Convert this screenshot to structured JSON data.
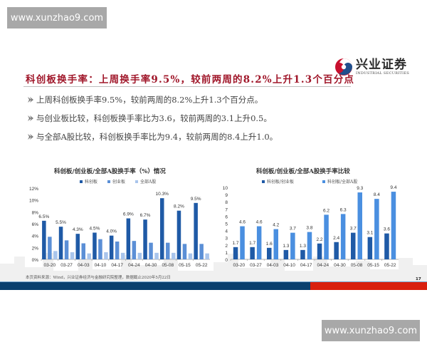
{
  "watermark": {
    "top_text": "www.xunzhao9.com",
    "bottom_text": "www.xunzhao9.com"
  },
  "logo": {
    "name_cn": "兴业证券",
    "name_en": "INDUSTRIAL SECURITIES",
    "colors": {
      "red": "#c8102e",
      "blue": "#1f4e8c"
    }
  },
  "headline": "科创板换手率：上周换手率9.5%，较前两周的8.2%上升1.3个百分点",
  "bullets": [
    {
      "icon": "chevron-bullet-icon",
      "text": "上周科创板换手率9.5%，较前两周的8.2%上升1.3个百分点。"
    },
    {
      "icon": "chevron-bullet-icon",
      "text": "与创业板比较，科创板换手率比为3.6，较前两周的3.1上升0.5。"
    },
    {
      "icon": "chevron-bullet-icon",
      "text": "与全部A股比较，科创板换手率比为9.4，较前两周的8.4上升1.0。"
    }
  ],
  "chart_data": [
    {
      "type": "bar",
      "title": "科创板/创业板/全部A股换手率（%）情况",
      "xlabel": "",
      "ylabel": "",
      "categories": [
        "03-20",
        "03-27",
        "04-03",
        "04-10",
        "04-17",
        "04-24",
        "04-30",
        "05-08",
        "05-15",
        "05-22"
      ],
      "series": [
        {
          "name": "科创板",
          "color": "#1f5aa6",
          "values": [
            6.5,
            5.5,
            4.3,
            4.5,
            4.0,
            6.9,
            6.7,
            10.3,
            8.2,
            9.5
          ],
          "labels": [
            "6.5%",
            "5.5%",
            "4.3%",
            "4.5%",
            "4.0%",
            "6.9%",
            "6.7%",
            "10.3%",
            "8.2%",
            "9.5%"
          ]
        },
        {
          "name": "创业板",
          "color": "#5b8fd6",
          "values": [
            3.8,
            3.2,
            2.7,
            3.4,
            3.0,
            3.1,
            2.8,
            2.8,
            2.6,
            2.6
          ]
        },
        {
          "name": "全部A股",
          "color": "#a9c5ec",
          "values": [
            1.4,
            1.2,
            1.0,
            1.2,
            1.1,
            1.1,
            1.1,
            1.1,
            1.0,
            1.0
          ]
        }
      ],
      "yticks": [
        "0%",
        "2%",
        "4%",
        "6%",
        "8%",
        "10%",
        "12%"
      ],
      "ylim": [
        0,
        12
      ],
      "grid": false,
      "legend_position": "top"
    },
    {
      "type": "bar",
      "title": "科创板/创业板/全部A股换手率比较",
      "xlabel": "",
      "ylabel": "",
      "categories": [
        "03-20",
        "03-27",
        "04-03",
        "04-10",
        "04-17",
        "04-24",
        "04-30",
        "05-08",
        "05-15",
        "05-22"
      ],
      "series": [
        {
          "name": "科创板/创业板",
          "color": "#1f5aa6",
          "values": [
            1.7,
            1.7,
            1.6,
            1.3,
            1.3,
            2.2,
            2.4,
            3.7,
            3.1,
            3.6
          ]
        },
        {
          "name": "科创板/全部A股",
          "color": "#4a8fe0",
          "values": [
            4.6,
            4.6,
            4.2,
            3.7,
            3.8,
            6.2,
            6.3,
            9.3,
            8.4,
            9.4
          ]
        }
      ],
      "yticks": [
        "0",
        "1",
        "2",
        "3",
        "4",
        "5",
        "6",
        "7",
        "8",
        "9",
        "10"
      ],
      "ylim": [
        0,
        10
      ],
      "grid": false,
      "legend_position": "top"
    }
  ],
  "footer": {
    "source": "本页资料来源：Wind，兴业证券经济与金融研究院整理，数据截止2020年5月22日",
    "page_number": "17"
  }
}
